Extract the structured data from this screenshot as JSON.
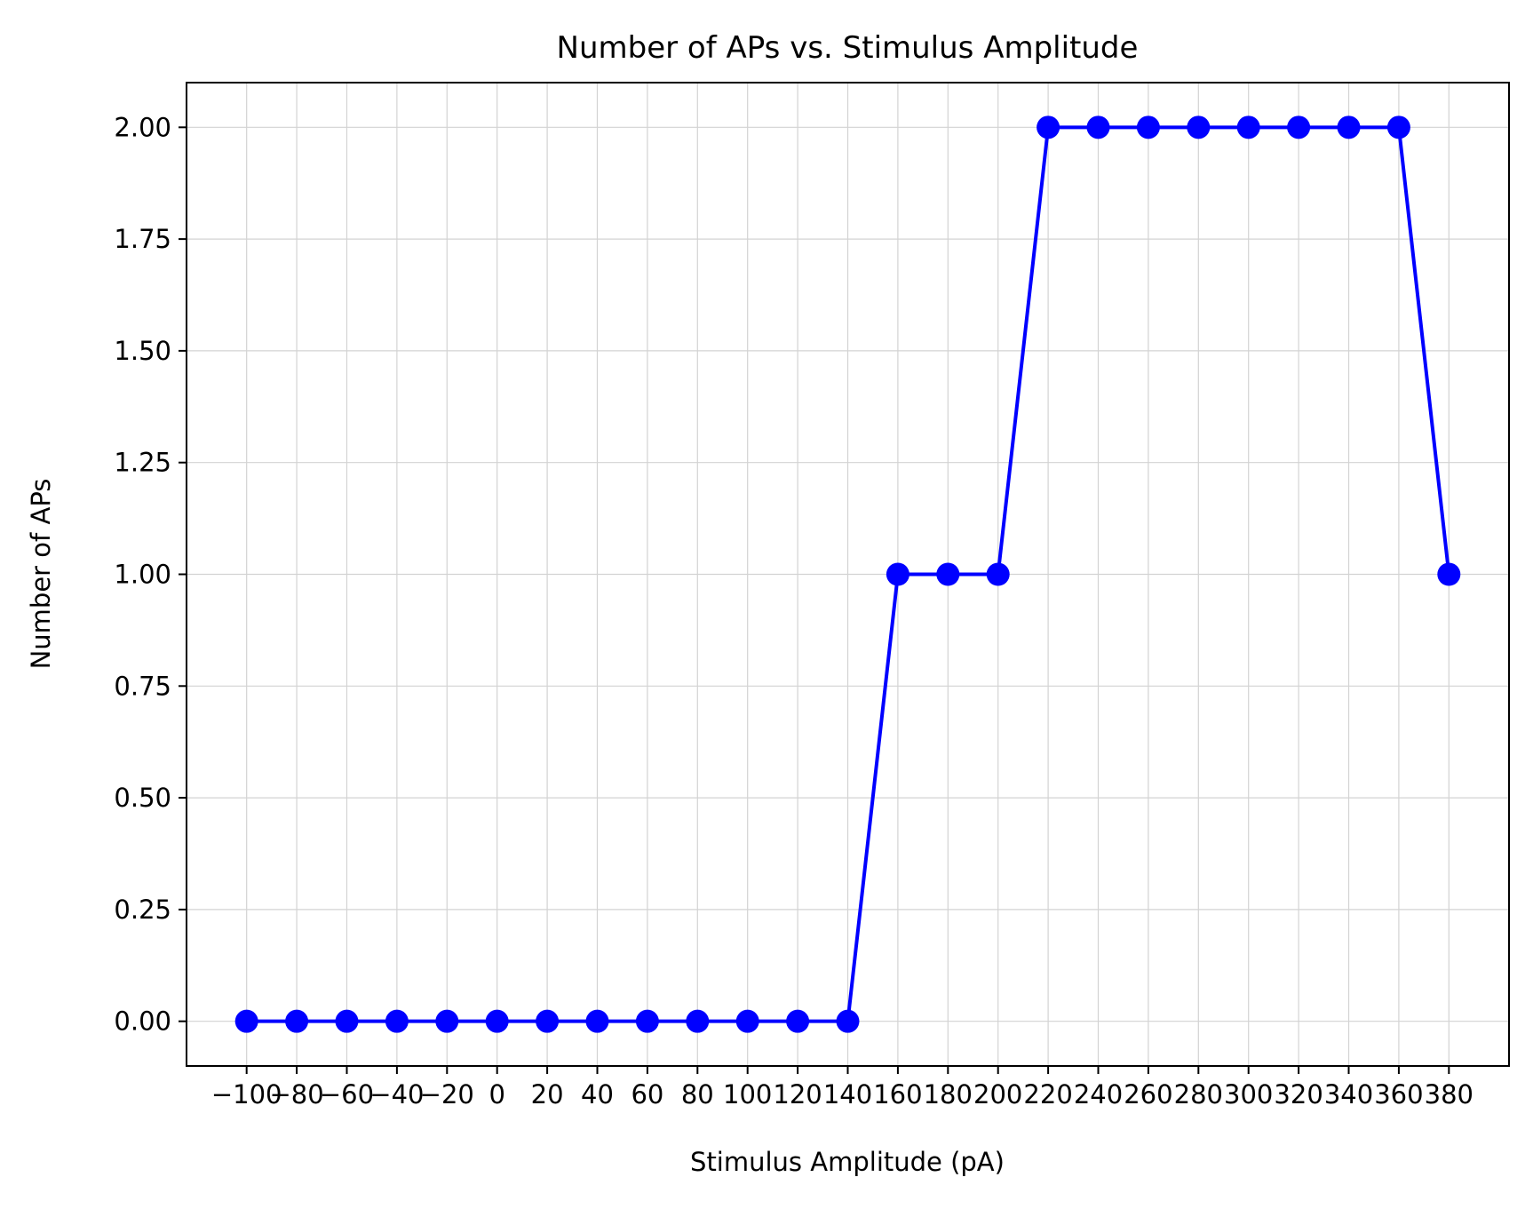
{
  "chart_data": {
    "type": "line",
    "title": "Number of APs vs. Stimulus Amplitude",
    "xlabel": "Stimulus Amplitude (pA)",
    "ylabel": "Number of APs",
    "x": [
      -100,
      -80,
      -60,
      -40,
      -20,
      0,
      20,
      40,
      60,
      80,
      100,
      120,
      140,
      160,
      180,
      200,
      220,
      240,
      260,
      280,
      300,
      320,
      340,
      360,
      380
    ],
    "series": [
      {
        "name": "",
        "values": [
          0,
          0,
          0,
          0,
          0,
          0,
          0,
          0,
          0,
          0,
          0,
          0,
          0,
          1,
          1,
          1,
          2,
          2,
          2,
          2,
          2,
          2,
          2,
          2,
          1
        ],
        "color": "#0000ff",
        "marker": "circle"
      }
    ],
    "xticks": [
      -100,
      -80,
      -60,
      -40,
      -20,
      0,
      20,
      40,
      60,
      80,
      100,
      120,
      140,
      160,
      180,
      200,
      220,
      240,
      260,
      280,
      300,
      320,
      340,
      360,
      380
    ],
    "xtick_labels": [
      "−100",
      "−80",
      "−60",
      "−40",
      "−20",
      "0",
      "20",
      "40",
      "60",
      "80",
      "100",
      "120",
      "140",
      "160",
      "180",
      "200",
      "220",
      "240",
      "260",
      "280",
      "300",
      "320",
      "340",
      "360",
      "380"
    ],
    "yticks": [
      0,
      0.25,
      0.5,
      0.75,
      1,
      1.25,
      1.5,
      1.75,
      2
    ],
    "ytick_labels": [
      "0.00",
      "0.25",
      "0.50",
      "0.75",
      "1.00",
      "1.25",
      "1.50",
      "1.75",
      "2.00"
    ],
    "xlim": [
      -124,
      404
    ],
    "ylim": [
      -0.1,
      2.1
    ],
    "grid": true,
    "colors": {
      "line": "#0000ff",
      "grid": "#d3d3d3",
      "axes": "#000000"
    }
  }
}
